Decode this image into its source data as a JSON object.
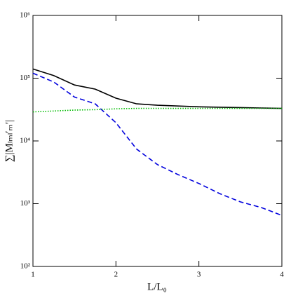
{
  "chart_data": {
    "type": "line",
    "xlabel": "L/L₀",
    "ylabel": "∑|Mₗₘₗ′ₘ′|",
    "x": [
      1,
      1.25,
      1.5,
      1.75,
      2,
      2.25,
      2.5,
      2.75,
      3,
      3.25,
      3.5,
      3.75,
      4
    ],
    "series": [
      {
        "color": "#000000",
        "dash": "solid",
        "values": [
          140000,
          110000,
          78000,
          67000,
          48000,
          39000,
          37000,
          36000,
          35000,
          34500,
          34000,
          33500,
          33000
        ]
      },
      {
        "color": "#0000dd",
        "dash": "dashed",
        "values": [
          120000,
          87000,
          50000,
          39000,
          19500,
          7400,
          4200,
          2900,
          2100,
          1450,
          1070,
          870,
          650
        ]
      },
      {
        "color": "#00bb00",
        "dash": "dotted",
        "values": [
          29000,
          30000,
          31000,
          31500,
          32500,
          33000,
          33000,
          33000,
          33000,
          33000,
          33000,
          33000,
          33000
        ]
      }
    ],
    "xlim": [
      1,
      4
    ],
    "xticks": [
      1,
      2,
      3,
      4
    ],
    "ylim": [
      100,
      1000000
    ],
    "ylog": true,
    "yticks": [
      {
        "value": 100,
        "label": "10²"
      },
      {
        "value": 1000,
        "label": "10³"
      },
      {
        "value": 10000,
        "label": "10⁴"
      },
      {
        "value": 100000,
        "label": "10⁵"
      },
      {
        "value": 1000000,
        "label": "10⁶"
      }
    ]
  }
}
